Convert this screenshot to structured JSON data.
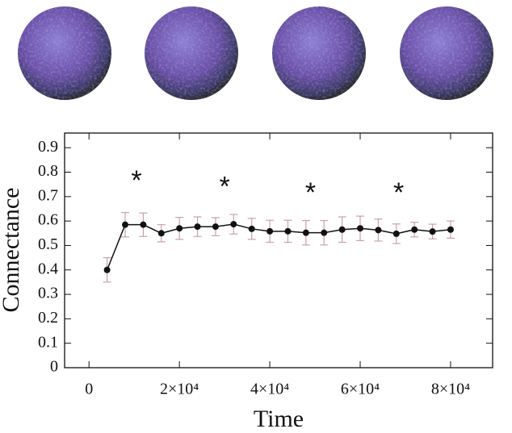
{
  "chart_data": {
    "type": "line",
    "xlabel": "Time",
    "ylabel": "Connectance",
    "x": [
      4000,
      8000,
      12000,
      16000,
      20000,
      24000,
      28000,
      32000,
      36000,
      40000,
      44000,
      48000,
      52000,
      56000,
      60000,
      64000,
      68000,
      72000,
      76000,
      80000
    ],
    "series": [
      {
        "color": "#111111",
        "error_color": "#c9a0a8",
        "values": [
          0.4,
          0.585,
          0.585,
          0.55,
          0.57,
          0.577,
          0.577,
          0.587,
          0.568,
          0.558,
          0.558,
          0.552,
          0.552,
          0.565,
          0.57,
          0.563,
          0.548,
          0.565,
          0.557,
          0.565
        ],
        "errors": [
          0.05,
          0.05,
          0.048,
          0.035,
          0.045,
          0.04,
          0.037,
          0.04,
          0.043,
          0.045,
          0.045,
          0.05,
          0.05,
          0.052,
          0.05,
          0.045,
          0.04,
          0.03,
          0.03,
          0.035
        ]
      }
    ],
    "annotations": [
      {
        "text": "*",
        "x": 10500,
        "y": 0.785
      },
      {
        "text": "*",
        "x": 30000,
        "y": 0.76
      },
      {
        "text": "*",
        "x": 49000,
        "y": 0.735
      },
      {
        "text": "*",
        "x": 68500,
        "y": 0.735
      }
    ],
    "xlim": [
      -5400,
      89300
    ],
    "ylim": [
      0,
      0.96
    ],
    "xticks": [
      0,
      {
        "value": 20000,
        "label": "2×10⁴"
      },
      {
        "value": 40000,
        "label": "4×10⁴"
      },
      {
        "value": 60000,
        "label": "6×10⁴"
      },
      {
        "value": 80000,
        "label": "8×10⁴"
      }
    ],
    "yticks": [
      0,
      0.1,
      0.2,
      0.3,
      0.4,
      0.5,
      0.6,
      0.7,
      0.8,
      0.9
    ]
  }
}
